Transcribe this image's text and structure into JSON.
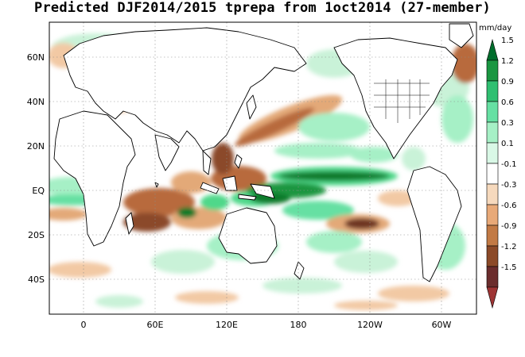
{
  "title": "Predicted DJF2014/2015 tprepa from 1oct2014 (27-member)",
  "units": "mm/day",
  "lat_labels": [
    "60N",
    "40N",
    "20N",
    "EQ",
    "20S",
    "40S"
  ],
  "lon_labels": [
    "0",
    "60E",
    "120E",
    "180",
    "120W",
    "60W"
  ],
  "colorbar": {
    "labels": [
      "1.5",
      "1.2",
      "0.9",
      "0.6",
      "0.3",
      "0.1",
      "-0.1",
      "-0.3",
      "-0.6",
      "-0.9",
      "-1.2",
      "-1.5"
    ],
    "colors": [
      "#006d2c",
      "#1a9641",
      "#2fbf71",
      "#66e0a3",
      "#a6f0c6",
      "#d9f8e6",
      "#ffffff",
      "#f6d9bd",
      "#e8a978",
      "#c27a45",
      "#8c4a28",
      "#6b2d2d",
      "#9e3434"
    ]
  },
  "colors": {
    "land_outline": "#000000",
    "grid": "#8a8a8a",
    "wet_strong": "#0a7a2c",
    "wet": "#4fd88a",
    "wet_light": "#c9f2d8",
    "dry_light": "#f2c9a4",
    "dry": "#b86b3e",
    "dry_strong": "#6e3520"
  }
}
